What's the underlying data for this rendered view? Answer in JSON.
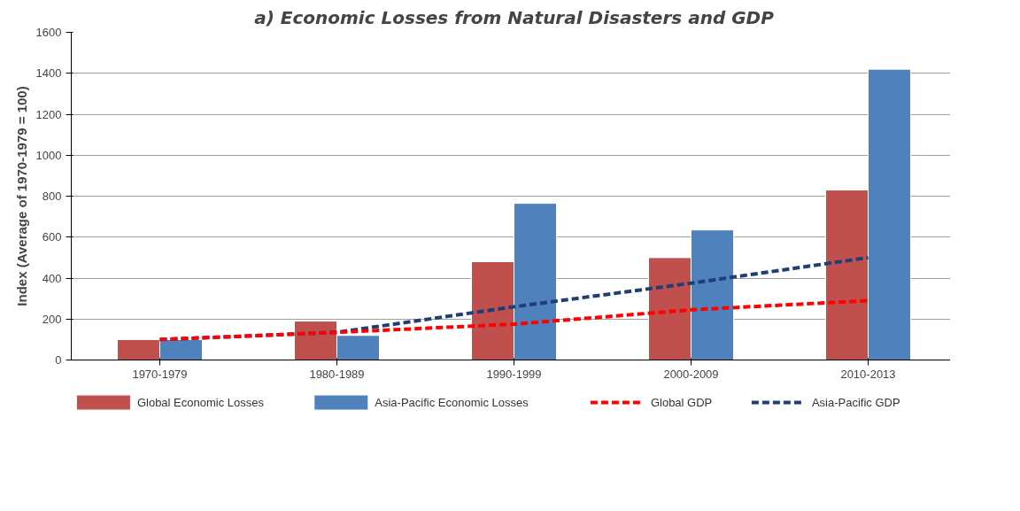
{
  "chart_data": {
    "type": "bar",
    "title": "a) Economic Losses from Natural Disasters and GDP",
    "ylabel": "Index (Average of 1970-1979 = 100)",
    "categories": [
      "1970-1979",
      "1980-1989",
      "1990-1999",
      "2000-2009",
      "2010-2013"
    ],
    "series": [
      {
        "name": "Global Economic Losses",
        "color": "#c0504d",
        "values": [
          100,
          190,
          480,
          500,
          830
        ]
      },
      {
        "name": "Asia-Pacific Economic Losses",
        "color": "#4f81bd",
        "values": [
          100,
          120,
          765,
          635,
          1420
        ]
      },
      {
        "name": "Global GDP",
        "type": "line",
        "line_style": "dashed",
        "color": "#ff0000",
        "values": [
          100,
          135,
          175,
          245,
          290
        ]
      },
      {
        "name": "Asia-Pacific GDP",
        "type": "line",
        "line_style": "dashed",
        "color": "#1f3f74",
        "values": [
          100,
          135,
          260,
          375,
          500
        ]
      }
    ],
    "ylim": [
      0,
      1600
    ],
    "yticks": [
      0,
      200,
      400,
      600,
      800,
      1000,
      1200,
      1400,
      1600
    ],
    "grid": "y",
    "legend": "bottom"
  }
}
